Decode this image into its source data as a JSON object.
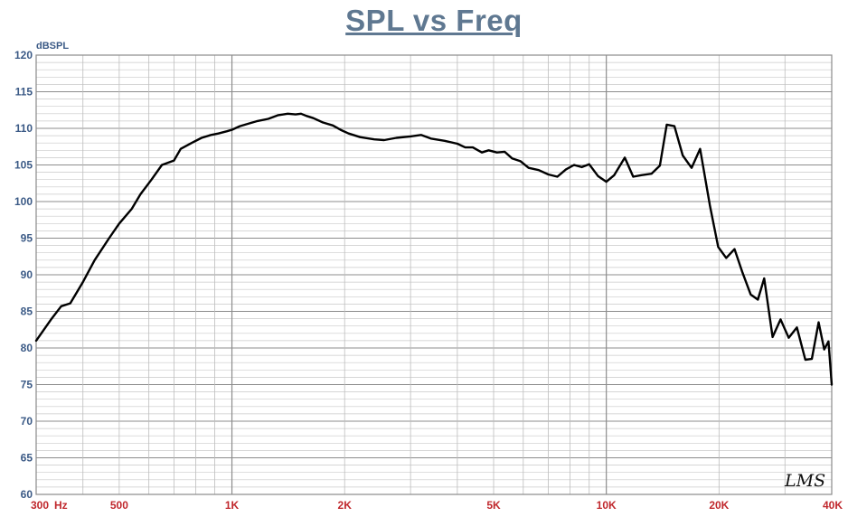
{
  "chart_data": {
    "type": "line",
    "title": "SPL vs Freq",
    "ylabel": "dBSPL",
    "x_scale": "log",
    "xlim": [
      300,
      40000
    ],
    "ylim": [
      60,
      120
    ],
    "y_ticks": [
      120,
      115,
      110,
      105,
      100,
      95,
      90,
      85,
      80,
      75,
      70,
      65,
      60
    ],
    "x_tick_labels": [
      {
        "value": 300,
        "label": "300"
      },
      {
        "value": 500,
        "label": "500"
      },
      {
        "value": 1000,
        "label": "1K"
      },
      {
        "value": 2000,
        "label": "2K"
      },
      {
        "value": 5000,
        "label": "5K"
      },
      {
        "value": 10000,
        "label": "10K"
      },
      {
        "value": 20000,
        "label": "20K"
      },
      {
        "value": 40000,
        "label": "40K"
      }
    ],
    "x_unit_label": "Hz",
    "grid": true,
    "watermark": "LMS",
    "series": [
      {
        "color": "#000000",
        "points": [
          [
            300,
            81
          ],
          [
            330,
            84
          ],
          [
            350,
            85.7
          ],
          [
            370,
            86.1
          ],
          [
            400,
            89
          ],
          [
            430,
            92
          ],
          [
            470,
            95
          ],
          [
            500,
            97
          ],
          [
            540,
            99
          ],
          [
            570,
            101
          ],
          [
            610,
            103
          ],
          [
            650,
            105
          ],
          [
            700,
            105.6
          ],
          [
            730,
            107.2
          ],
          [
            780,
            108
          ],
          [
            830,
            108.7
          ],
          [
            880,
            109.1
          ],
          [
            920,
            109.3
          ],
          [
            970,
            109.6
          ],
          [
            1000,
            109.8
          ],
          [
            1050,
            110.3
          ],
          [
            1100,
            110.6
          ],
          [
            1170,
            111
          ],
          [
            1250,
            111.3
          ],
          [
            1330,
            111.8
          ],
          [
            1410,
            112
          ],
          [
            1480,
            111.9
          ],
          [
            1530,
            112
          ],
          [
            1580,
            111.7
          ],
          [
            1650,
            111.4
          ],
          [
            1750,
            110.8
          ],
          [
            1860,
            110.4
          ],
          [
            1950,
            109.8
          ],
          [
            2050,
            109.3
          ],
          [
            2200,
            108.8
          ],
          [
            2400,
            108.5
          ],
          [
            2550,
            108.4
          ],
          [
            2750,
            108.7
          ],
          [
            3000,
            108.9
          ],
          [
            3200,
            109.1
          ],
          [
            3400,
            108.6
          ],
          [
            3700,
            108.3
          ],
          [
            4000,
            107.9
          ],
          [
            4200,
            107.4
          ],
          [
            4400,
            107.4
          ],
          [
            4650,
            106.7
          ],
          [
            4850,
            107
          ],
          [
            5100,
            106.7
          ],
          [
            5350,
            106.8
          ],
          [
            5600,
            105.9
          ],
          [
            5900,
            105.5
          ],
          [
            6200,
            104.6
          ],
          [
            6600,
            104.3
          ],
          [
            7000,
            103.7
          ],
          [
            7400,
            103.4
          ],
          [
            7800,
            104.4
          ],
          [
            8200,
            105
          ],
          [
            8600,
            104.7
          ],
          [
            9000,
            105.1
          ],
          [
            9500,
            103.5
          ],
          [
            10000,
            102.7
          ],
          [
            10500,
            103.6
          ],
          [
            11200,
            106
          ],
          [
            11800,
            103.4
          ],
          [
            12400,
            103.6
          ],
          [
            13200,
            103.8
          ],
          [
            13900,
            104.9
          ],
          [
            14500,
            110.5
          ],
          [
            15200,
            110.3
          ],
          [
            16000,
            106.3
          ],
          [
            16900,
            104.6
          ],
          [
            17800,
            107.2
          ],
          [
            18900,
            99.5
          ],
          [
            19900,
            93.8
          ],
          [
            20900,
            92.3
          ],
          [
            22000,
            93.5
          ],
          [
            23100,
            90.3
          ],
          [
            24300,
            87.3
          ],
          [
            25400,
            86.6
          ],
          [
            26400,
            89.5
          ],
          [
            27800,
            81.5
          ],
          [
            29200,
            83.9
          ],
          [
            30700,
            81.4
          ],
          [
            32300,
            82.8
          ],
          [
            34000,
            78.4
          ],
          [
            35400,
            78.5
          ],
          [
            36900,
            83.5
          ],
          [
            38200,
            79.8
          ],
          [
            39200,
            80.9
          ],
          [
            40000,
            75
          ]
        ]
      }
    ]
  }
}
